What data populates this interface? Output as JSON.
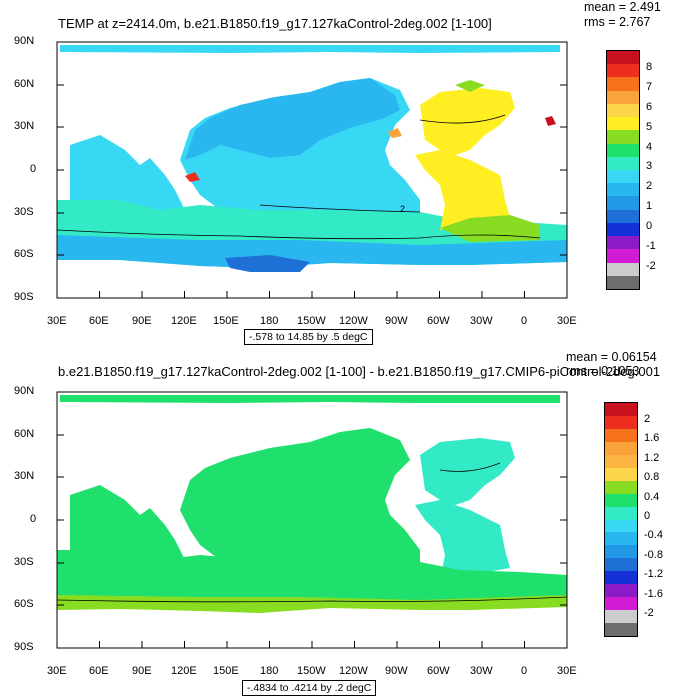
{
  "panels": [
    {
      "title": "TEMP at z=2414.0m, b.e21.B1850.f19_g17.127kaControl-2deg.002 [1-100]",
      "mean": "mean = 2.491",
      "rms": "rms = 2.767",
      "range": "-.578 to 14.85 by .5 degC",
      "contour_label": "2",
      "colorbar_labels": [
        "8",
        "7",
        "6",
        "5",
        "4",
        "3",
        "2",
        "1",
        "0",
        "-1",
        "-2"
      ],
      "colorbar_colors": [
        "#c8101e",
        "#ee2e1e",
        "#f6731b",
        "#f9a33a",
        "#fcd54a",
        "#ffee22",
        "#88dd22",
        "#1fe06c",
        "#33eac6",
        "#38d8f5",
        "#2ab7ef",
        "#2299e6",
        "#1e6fd6",
        "#1431d8",
        "#8a1bc6",
        "#d11bd4",
        "#cccccc",
        "#6d6d6d"
      ]
    },
    {
      "title": "b.e21.B1850.f19_g17.127kaControl-2deg.002 [1-100] - b.e21.B1850.f19_g17.CMIP6-piControl-2deg.001",
      "mean": "mean = 0.06154",
      "rms": "rms = 0.1053",
      "range": "-.4834 to .4214 by .2 degC",
      "colorbar_labels": [
        "2",
        "1.6",
        "1.2",
        "0.8",
        "0.4",
        "0",
        "-0.4",
        "-0.8",
        "-1.2",
        "-1.6",
        "-2"
      ],
      "colorbar_colors": [
        "#c8101e",
        "#ee2e1e",
        "#f6731b",
        "#f9a33a",
        "#fcb542",
        "#fcd54a",
        "#88dd22",
        "#1fe06c",
        "#33eac6",
        "#38d8f5",
        "#2ab7ef",
        "#2299e6",
        "#1e6fd6",
        "#1431d8",
        "#8a1bc6",
        "#d11bd4",
        "#cccccc",
        "#6d6d6d"
      ]
    }
  ],
  "lat_ticks": [
    "90N",
    "60N",
    "30N",
    "0",
    "30S",
    "60S",
    "90S"
  ],
  "lon_ticks": [
    "30E",
    "60E",
    "90E",
    "120E",
    "150E",
    "180",
    "150W",
    "120W",
    "90W",
    "60W",
    "30W",
    "0",
    "30E"
  ]
}
